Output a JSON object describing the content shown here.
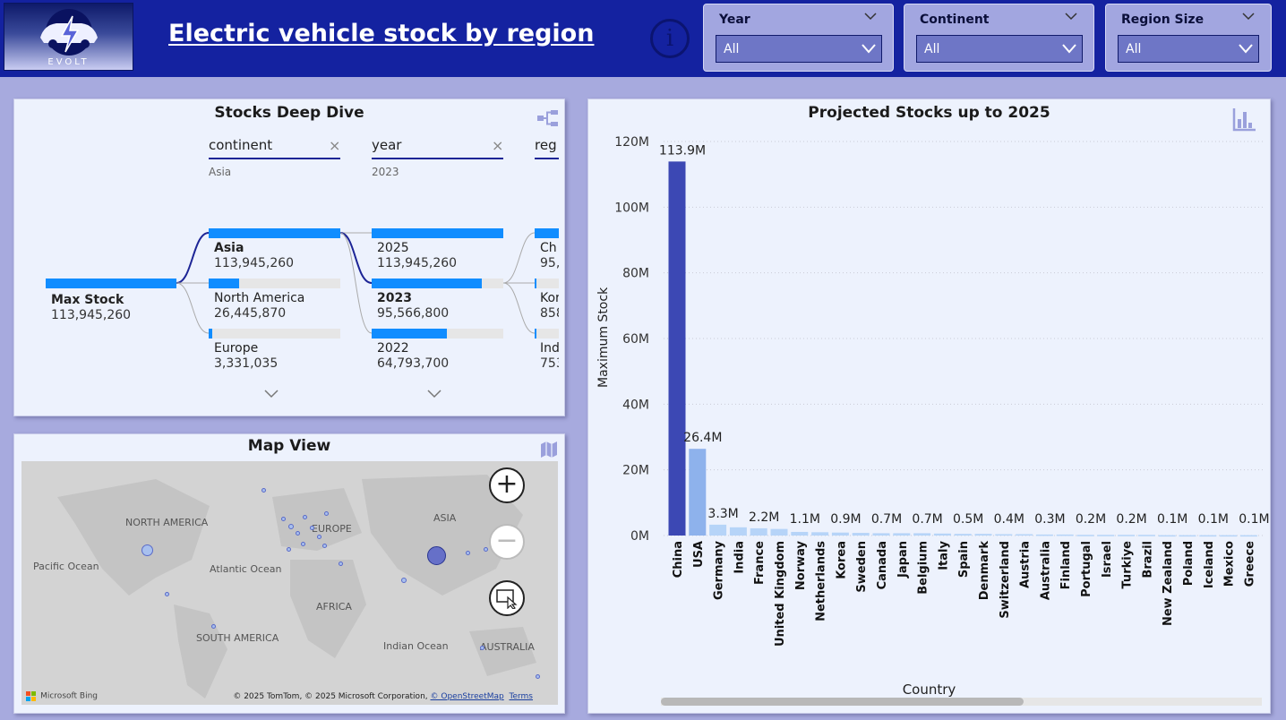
{
  "header": {
    "logo_text": "EVOLT",
    "title": "Electric vehicle stock by region",
    "info_icon": "info-circle-icon",
    "slicers": [
      {
        "label": "Year",
        "value": "All"
      },
      {
        "label": "Continent",
        "value": "All"
      },
      {
        "label": "Region Size",
        "value": "All"
      }
    ]
  },
  "decomp": {
    "title": "Stocks Deep Dive",
    "filters": [
      {
        "label": "continent",
        "value": "Asia"
      },
      {
        "label": "year",
        "value": "2023"
      },
      {
        "label": "reg",
        "value": ""
      }
    ],
    "root": {
      "name": "Max Stock",
      "value": "113,945,260"
    },
    "level1": [
      {
        "name": "Asia",
        "value": "113,945,260",
        "fraction": 1.0
      },
      {
        "name": "North America",
        "value": "26,445,870",
        "fraction": 0.232
      },
      {
        "name": "Europe",
        "value": "3,331,035",
        "fraction": 0.029
      }
    ],
    "level2": [
      {
        "name": "2025",
        "value": "113,945,260",
        "fraction": 1.0
      },
      {
        "name": "2023",
        "value": "95,566,800",
        "fraction": 0.839
      },
      {
        "name": "2022",
        "value": "64,793,700",
        "fraction": 0.569
      }
    ],
    "level3": [
      {
        "name": "Ch",
        "value": "95,"
      },
      {
        "name": "Kor",
        "value": "858"
      },
      {
        "name": "Ind",
        "value": "753"
      }
    ]
  },
  "map": {
    "title": "Map View",
    "labels": [
      "NORTH AMERICA",
      "EUROPE",
      "ASIA",
      "Pacific Ocean",
      "Atlantic Ocean",
      "AFRICA",
      "SOUTH AMERICA",
      "Indian Ocean",
      "AUSTRALIA"
    ],
    "brand": "Microsoft Bing",
    "copyright": "© 2025 TomTom, © 2025 Microsoft Corporation, ",
    "osm_link": "© OpenStreetMap",
    "terms_link": "Terms"
  },
  "chart_data": {
    "type": "bar",
    "title": "Projected Stocks up to 2025",
    "xlabel": "Country",
    "ylabel": "Maximum Stock",
    "ylim": [
      0,
      120000000
    ],
    "yticks": [
      "0M",
      "20M",
      "40M",
      "60M",
      "80M",
      "100M",
      "120M"
    ],
    "categories": [
      "China",
      "USA",
      "Germany",
      "India",
      "France",
      "United Kingdom",
      "Norway",
      "Netherlands",
      "Korea",
      "Sweden",
      "Canada",
      "Japan",
      "Belgium",
      "Italy",
      "Spain",
      "Denmark",
      "Switzerland",
      "Austria",
      "Australia",
      "Finland",
      "Portugal",
      "Israel",
      "Turkiye",
      "Brazil",
      "New Zealand",
      "Poland",
      "Iceland",
      "Mexico",
      "Greece"
    ],
    "values": [
      113900000,
      26400000,
      3300000,
      2500000,
      2200000,
      2000000,
      1100000,
      1000000,
      900000,
      800000,
      700000,
      700000,
      700000,
      600000,
      500000,
      500000,
      400000,
      400000,
      300000,
      300000,
      200000,
      200000,
      200000,
      200000,
      100000,
      100000,
      100000,
      100000,
      100000
    ],
    "data_labels": [
      "113.9M",
      "26.4M",
      "3.3M",
      "",
      "2.2M",
      "",
      "1.1M",
      "",
      "0.9M",
      "",
      "0.7M",
      "",
      "0.7M",
      "",
      "0.5M",
      "",
      "0.4M",
      "",
      "0.3M",
      "",
      "0.2M",
      "",
      "0.2M",
      "",
      "0.1M",
      "",
      "0.1M",
      "",
      "0.1M"
    ],
    "colors": {
      "china": "#3c48b4",
      "usa": "#8eb2ec",
      "others": "#b6d4f8"
    },
    "grid": true
  }
}
